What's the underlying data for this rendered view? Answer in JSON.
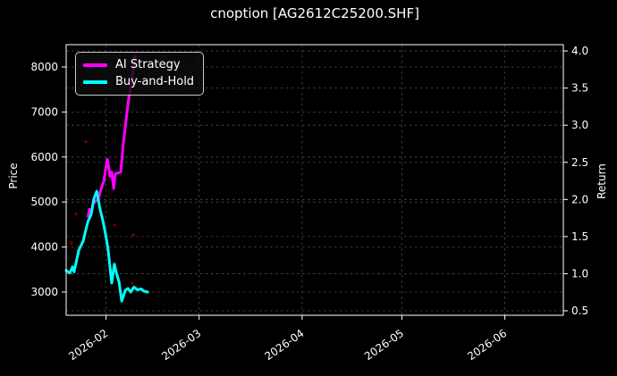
{
  "window": {
    "title": "cnoption [AG2612C25200.SHF]"
  },
  "colors": {
    "background": "#000000",
    "text": "#ffffff",
    "grid": "#4d4d4d",
    "spine": "#ffffff",
    "ai_strategy": "#ff00ff",
    "buy_and_hold": "#00ffff",
    "trade_marker": "#6e0000",
    "legend_border": "#c8c8c8"
  },
  "chart_data": {
    "type": "line",
    "style": "dark",
    "grid": true,
    "title": "cnoption [AG2612C25200.SHF]",
    "x_axis": {
      "label": "",
      "start_date": "2026-01-20",
      "domain_days": [
        0,
        149.6
      ],
      "tick_days": [
        12,
        40,
        71,
        101,
        132
      ],
      "tick_labels": [
        "2026-02",
        "2026-03",
        "2026-04",
        "2026-05",
        "2026-06"
      ],
      "tick_rotation_deg": -35
    },
    "left_axis": {
      "label": "Price",
      "range": [
        2484,
        8496
      ],
      "ticks": [
        3000,
        4000,
        5000,
        6000,
        7000,
        8000
      ],
      "tick_labels": [
        "3000",
        "4000",
        "5000",
        "6000",
        "7000",
        "8000"
      ]
    },
    "right_axis": {
      "label": "Return",
      "range": [
        0.44,
        4.085
      ],
      "ticks": [
        0.5,
        1.0,
        1.5,
        2.0,
        2.5,
        3.0,
        3.5,
        4.0
      ],
      "tick_labels": [
        "0.5",
        "1.0",
        "1.5",
        "2.0",
        "2.5",
        "3.0",
        "3.5",
        "4.0"
      ]
    },
    "legend": {
      "position": "upper-left",
      "entries": [
        "AI Strategy",
        "Buy-and-Hold"
      ]
    },
    "series": [
      {
        "name": "AI Strategy",
        "color": "#ff00ff",
        "axis": "price",
        "points_day_value": [
          [
            6.6,
            4680
          ],
          [
            7.0,
            4840
          ],
          [
            7.4,
            4700
          ],
          [
            8.1,
            4960
          ],
          [
            9.7,
            5080
          ],
          [
            10.5,
            5290
          ],
          [
            11.3,
            5450
          ],
          [
            11.8,
            5700
          ],
          [
            12.4,
            5950
          ],
          [
            13.2,
            5570
          ],
          [
            13.7,
            5670
          ],
          [
            14.3,
            5300
          ],
          [
            14.8,
            5630
          ],
          [
            16.4,
            5660
          ],
          [
            17.2,
            6300
          ],
          [
            18.0,
            6800
          ],
          [
            18.8,
            7300
          ],
          [
            19.6,
            7600
          ],
          [
            20.2,
            7950
          ],
          [
            20.7,
            8240
          ]
        ]
      },
      {
        "name": "Buy-and-Hold",
        "color": "#00ffff",
        "axis": "price",
        "points_day_value": [
          [
            0,
            3480
          ],
          [
            1.1,
            3420
          ],
          [
            1.9,
            3560
          ],
          [
            2.4,
            3450
          ],
          [
            3.8,
            3930
          ],
          [
            5.1,
            4130
          ],
          [
            6.5,
            4560
          ],
          [
            7.5,
            4720
          ],
          [
            8.3,
            5060
          ],
          [
            9.2,
            5240
          ],
          [
            10.2,
            4840
          ],
          [
            11.0,
            4600
          ],
          [
            11.8,
            4300
          ],
          [
            12.6,
            3960
          ],
          [
            13.7,
            3200
          ],
          [
            14.5,
            3620
          ],
          [
            15.1,
            3430
          ],
          [
            15.9,
            3230
          ],
          [
            16.7,
            2800
          ],
          [
            17.8,
            3040
          ],
          [
            18.6,
            3080
          ],
          [
            19.4,
            3000
          ],
          [
            20.4,
            3110
          ],
          [
            21.5,
            3050
          ],
          [
            22.6,
            3070
          ],
          [
            23.4,
            3020
          ],
          [
            24.5,
            3000
          ]
        ]
      }
    ],
    "markers": {
      "name": "trade-markers",
      "color": "#6e0000",
      "points_day_value": [
        [
          5.9,
          6340
        ],
        [
          3.0,
          4730
        ],
        [
          1.6,
          4090
        ],
        [
          14.5,
          4490
        ],
        [
          20.2,
          4270
        ],
        [
          19.9,
          3200
        ]
      ]
    }
  }
}
